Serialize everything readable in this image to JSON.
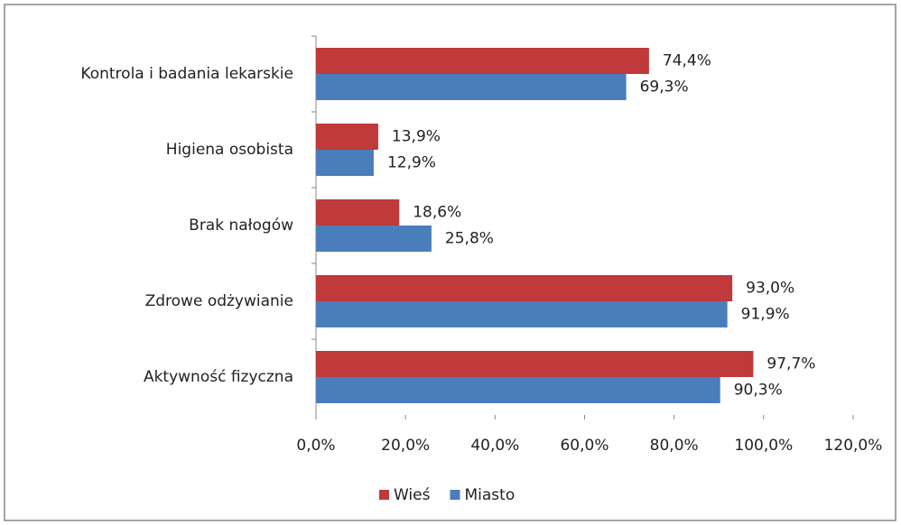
{
  "chart_data": {
    "type": "bar",
    "orientation": "horizontal",
    "categories": [
      "Kontrola i badania lekarskie",
      "Higiena osobista",
      "Brak nałogów",
      "Zdrowe odżywianie",
      "Aktywność fizyczna"
    ],
    "series": [
      {
        "name": "Wieś",
        "color": "#c0393b",
        "values": [
          74.4,
          13.9,
          18.6,
          93.0,
          97.7
        ],
        "value_labels": [
          "74,4%",
          "13,9%",
          "18,6%",
          "93,0%",
          "97,7%"
        ]
      },
      {
        "name": "Miasto",
        "color": "#4a7ebb",
        "values": [
          69.3,
          12.9,
          25.8,
          91.9,
          90.3
        ],
        "value_labels": [
          "69,3%",
          "12,9%",
          "25,8%",
          "91,9%",
          "90,3%"
        ]
      }
    ],
    "xlim": [
      0,
      120
    ],
    "xticks": [
      {
        "value": 0,
        "label": "0,0%"
      },
      {
        "value": 20,
        "label": "20,0%"
      },
      {
        "value": 40,
        "label": "40,0%"
      },
      {
        "value": 60,
        "label": "60,0%"
      },
      {
        "value": 80,
        "label": "80,0%"
      },
      {
        "value": 100,
        "label": "100,0%"
      },
      {
        "value": 120,
        "label": "120,0%"
      }
    ],
    "legend": "bottom"
  }
}
